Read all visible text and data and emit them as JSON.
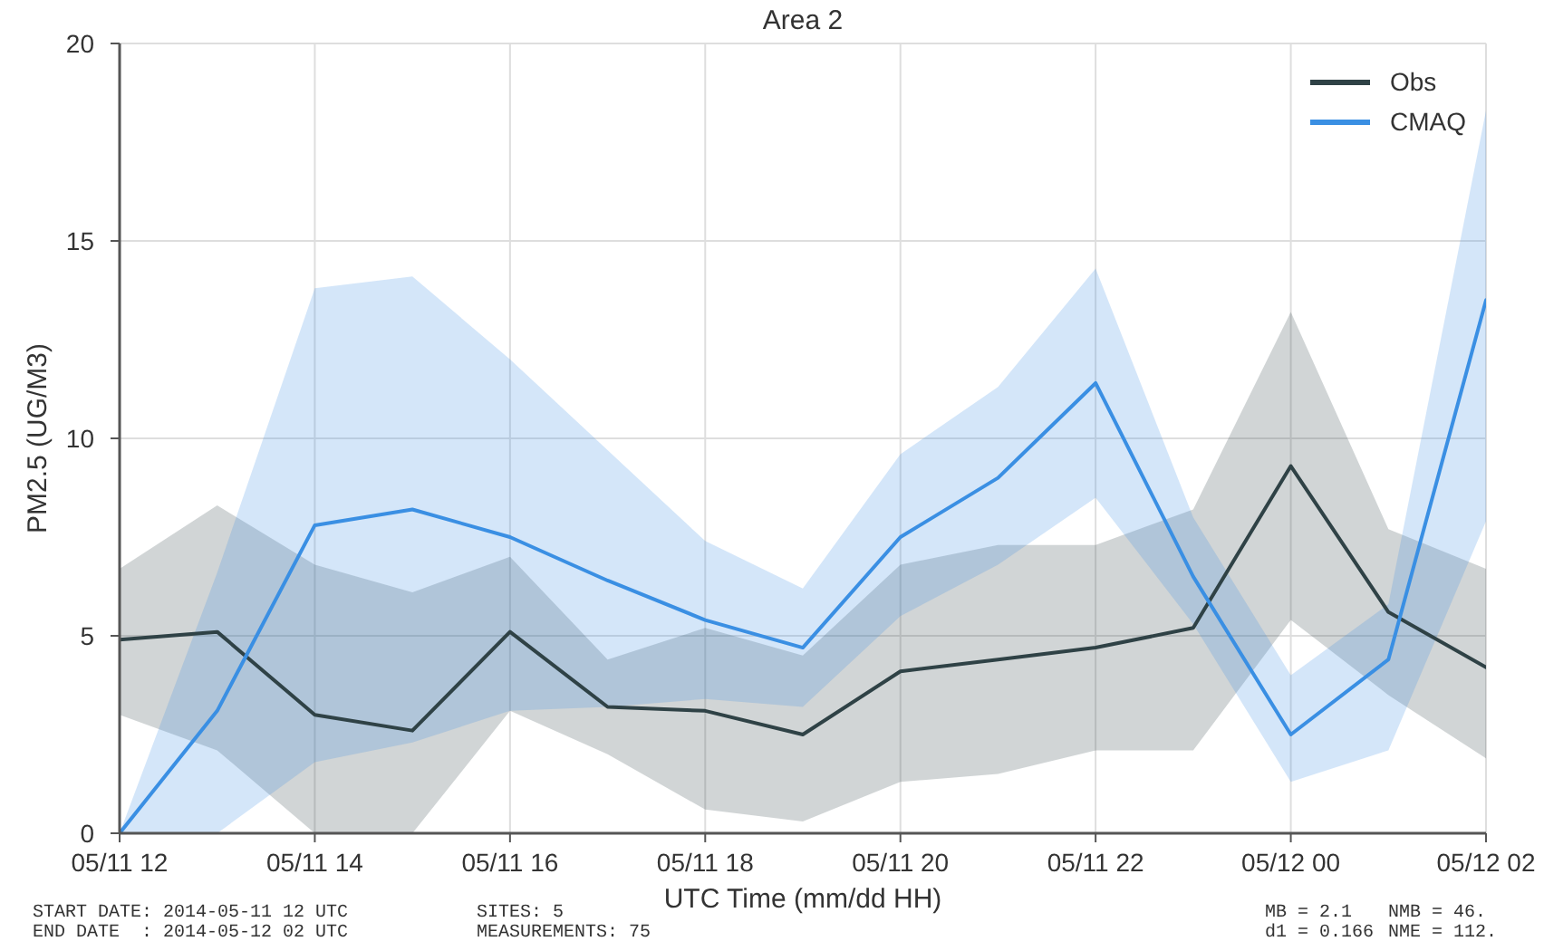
{
  "chart_data": {
    "type": "line",
    "title": "Area 2",
    "xlabel": "UTC Time (mm/dd HH)",
    "ylabel": "PM2.5 (UG/M3)",
    "x": [
      "2014-05-11T12:00",
      "2014-05-11T13:00",
      "2014-05-11T14:00",
      "2014-05-11T15:00",
      "2014-05-11T16:00",
      "2014-05-11T17:00",
      "2014-05-11T18:00",
      "2014-05-11T19:00",
      "2014-05-11T20:00",
      "2014-05-11T21:00",
      "2014-05-11T22:00",
      "2014-05-11T23:00",
      "2014-05-12T00:00",
      "2014-05-12T01:00",
      "2014-05-12T02:00"
    ],
    "series": [
      {
        "name": "Obs",
        "color": "#2f4246",
        "values": [
          4.9,
          5.1,
          3.0,
          2.6,
          5.1,
          3.2,
          3.1,
          2.5,
          4.1,
          4.4,
          4.7,
          5.2,
          9.3,
          5.6,
          4.2
        ],
        "lower": [
          3.0,
          2.1,
          0,
          0,
          3.1,
          2.0,
          0.6,
          0.3,
          1.3,
          1.5,
          2.1,
          2.1,
          5.4,
          3.5,
          1.9
        ],
        "upper": [
          6.7,
          8.3,
          6.8,
          6.1,
          7.0,
          4.4,
          5.2,
          4.5,
          6.8,
          7.3,
          7.3,
          8.2,
          13.2,
          7.7,
          6.7
        ]
      },
      {
        "name": "CMAQ",
        "color": "#3a8fe3",
        "values": [
          0,
          3.1,
          7.8,
          8.2,
          7.5,
          6.4,
          5.4,
          4.7,
          7.5,
          9.0,
          11.4,
          6.5,
          2.5,
          4.4,
          13.5
        ],
        "lower": [
          0,
          0,
          1.8,
          2.3,
          3.1,
          3.2,
          3.4,
          3.2,
          5.5,
          6.8,
          8.5,
          5.3,
          1.3,
          2.1,
          7.9
        ],
        "upper": [
          0,
          6.6,
          13.8,
          14.1,
          12.0,
          9.7,
          7.4,
          6.2,
          9.6,
          11.3,
          14.3,
          8.0,
          4.0,
          5.8,
          18.3
        ]
      }
    ],
    "xlim": [
      "2014-05-11T12:00",
      "2014-05-12T02:00"
    ],
    "xticks": [
      {
        "value": "2014-05-11T12:00",
        "label": "05/11 12"
      },
      {
        "value": "2014-05-11T14:00",
        "label": "05/11 14"
      },
      {
        "value": "2014-05-11T16:00",
        "label": "05/11 16"
      },
      {
        "value": "2014-05-11T18:00",
        "label": "05/11 18"
      },
      {
        "value": "2014-05-11T20:00",
        "label": "05/11 20"
      },
      {
        "value": "2014-05-11T22:00",
        "label": "05/11 22"
      },
      {
        "value": "2014-05-12T00:00",
        "label": "05/12 00"
      },
      {
        "value": "2014-05-12T02:00",
        "label": "05/12 02"
      }
    ],
    "ylim": [
      0,
      20
    ],
    "yticks": [
      0,
      5,
      10,
      15,
      20
    ],
    "grid": true,
    "legend": "top right",
    "line_style": "solid",
    "annotations": [
      "START DATE: 2014-05-11 12 UTC",
      "END DATE  : 2014-05-12 02 UTC",
      "SITES: 5",
      "MEASUREMENTS: 75",
      "MB = 2.1",
      "d1 = 0.166",
      "NMB = 46.",
      "NME = 112."
    ]
  }
}
